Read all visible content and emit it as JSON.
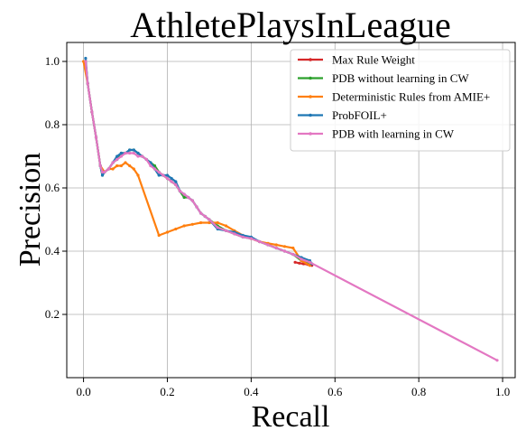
{
  "chart_data": {
    "type": "line",
    "title": "AthletePlaysInLeague",
    "xlabel": "Recall",
    "ylabel": "Precision",
    "xlim": [
      -0.04,
      1.03
    ],
    "ylim": [
      0.0,
      1.06
    ],
    "xticks": [
      0.0,
      0.2,
      0.4,
      0.6,
      0.8,
      1.0
    ],
    "xtick_labels": [
      "0.0",
      "0.2",
      "0.4",
      "0.6",
      "0.8",
      "1.0"
    ],
    "yticks": [
      0.2,
      0.4,
      0.6,
      0.8,
      1.0
    ],
    "ytick_labels": [
      "0.2",
      "0.4",
      "0.6",
      "0.8",
      "1.0"
    ],
    "grid": true,
    "legend_position": "top-right",
    "series": [
      {
        "name": "Max Rule Weight",
        "color": "#d62728",
        "x": [
          0.505,
          0.515,
          0.525,
          0.535,
          0.545
        ],
        "y": [
          0.365,
          0.362,
          0.36,
          0.358,
          0.355
        ]
      },
      {
        "name": "PDB without learning in CW",
        "color": "#2ca02c",
        "x": [
          0.005,
          0.01,
          0.02,
          0.03,
          0.04,
          0.045,
          0.05,
          0.06,
          0.07,
          0.08,
          0.09,
          0.1,
          0.11,
          0.12,
          0.13,
          0.14,
          0.15,
          0.16,
          0.17,
          0.18,
          0.19,
          0.2,
          0.21,
          0.22,
          0.23,
          0.24,
          0.25,
          0.26,
          0.27,
          0.28,
          0.29,
          0.3,
          0.32,
          0.34,
          0.36,
          0.38,
          0.4,
          0.42,
          0.44,
          0.46,
          0.48,
          0.5,
          0.52,
          0.54
        ],
        "y": [
          1.0,
          0.93,
          0.84,
          0.76,
          0.67,
          0.64,
          0.65,
          0.66,
          0.68,
          0.69,
          0.71,
          0.71,
          0.72,
          0.72,
          0.71,
          0.7,
          0.69,
          0.68,
          0.67,
          0.65,
          0.64,
          0.63,
          0.62,
          0.61,
          0.59,
          0.57,
          0.57,
          0.56,
          0.54,
          0.52,
          0.51,
          0.5,
          0.48,
          0.465,
          0.455,
          0.445,
          0.44,
          0.43,
          0.42,
          0.41,
          0.4,
          0.39,
          0.37,
          0.36
        ]
      },
      {
        "name": "Deterministic Rules from AMIE+",
        "color": "#ff7f0e",
        "x": [
          0.0,
          0.01,
          0.02,
          0.03,
          0.04,
          0.05,
          0.06,
          0.07,
          0.08,
          0.09,
          0.1,
          0.11,
          0.12,
          0.13,
          0.18,
          0.2,
          0.22,
          0.24,
          0.26,
          0.28,
          0.3,
          0.32,
          0.34,
          0.36,
          0.38,
          0.4,
          0.42,
          0.44,
          0.46,
          0.48,
          0.5,
          0.52,
          0.54
        ],
        "y": [
          1.0,
          0.93,
          0.84,
          0.76,
          0.67,
          0.65,
          0.66,
          0.66,
          0.67,
          0.67,
          0.68,
          0.67,
          0.66,
          0.64,
          0.45,
          0.46,
          0.47,
          0.48,
          0.485,
          0.49,
          0.49,
          0.49,
          0.48,
          0.465,
          0.45,
          0.44,
          0.43,
          0.425,
          0.42,
          0.415,
          0.41,
          0.37,
          0.355
        ]
      },
      {
        "name": "ProbFOIL+",
        "color": "#1f77b4",
        "x": [
          0.005,
          0.01,
          0.02,
          0.03,
          0.04,
          0.045,
          0.05,
          0.06,
          0.07,
          0.08,
          0.09,
          0.1,
          0.11,
          0.12,
          0.13,
          0.14,
          0.15,
          0.16,
          0.17,
          0.18,
          0.19,
          0.2,
          0.21,
          0.22,
          0.23,
          0.24,
          0.25,
          0.26,
          0.27,
          0.28,
          0.29,
          0.3,
          0.32,
          0.34,
          0.36,
          0.38,
          0.4,
          0.42,
          0.44,
          0.46,
          0.48,
          0.5,
          0.52,
          0.54,
          0.545
        ],
        "y": [
          1.01,
          0.93,
          0.84,
          0.76,
          0.67,
          0.64,
          0.65,
          0.66,
          0.68,
          0.7,
          0.71,
          0.71,
          0.72,
          0.72,
          0.71,
          0.7,
          0.69,
          0.68,
          0.66,
          0.64,
          0.64,
          0.64,
          0.63,
          0.62,
          0.59,
          0.58,
          0.57,
          0.56,
          0.54,
          0.52,
          0.51,
          0.5,
          0.47,
          0.465,
          0.46,
          0.45,
          0.445,
          0.43,
          0.42,
          0.41,
          0.4,
          0.39,
          0.38,
          0.37,
          0.36
        ]
      },
      {
        "name": "PDB with learning in CW",
        "color": "#e377c2",
        "x": [
          0.005,
          0.01,
          0.02,
          0.03,
          0.04,
          0.045,
          0.05,
          0.06,
          0.07,
          0.08,
          0.09,
          0.1,
          0.11,
          0.12,
          0.13,
          0.14,
          0.15,
          0.16,
          0.17,
          0.18,
          0.19,
          0.2,
          0.21,
          0.22,
          0.23,
          0.24,
          0.25,
          0.26,
          0.27,
          0.28,
          0.29,
          0.3,
          0.32,
          0.34,
          0.36,
          0.38,
          0.4,
          0.42,
          0.44,
          0.46,
          0.48,
          0.5,
          0.52,
          0.54,
          0.987
        ],
        "y": [
          1.0,
          0.93,
          0.84,
          0.76,
          0.67,
          0.65,
          0.65,
          0.66,
          0.68,
          0.69,
          0.7,
          0.71,
          0.71,
          0.71,
          0.7,
          0.7,
          0.69,
          0.67,
          0.66,
          0.65,
          0.64,
          0.63,
          0.62,
          0.61,
          0.59,
          0.58,
          0.57,
          0.56,
          0.54,
          0.52,
          0.51,
          0.5,
          0.475,
          0.465,
          0.455,
          0.445,
          0.44,
          0.43,
          0.42,
          0.41,
          0.4,
          0.39,
          0.375,
          0.365,
          0.055
        ]
      }
    ]
  }
}
